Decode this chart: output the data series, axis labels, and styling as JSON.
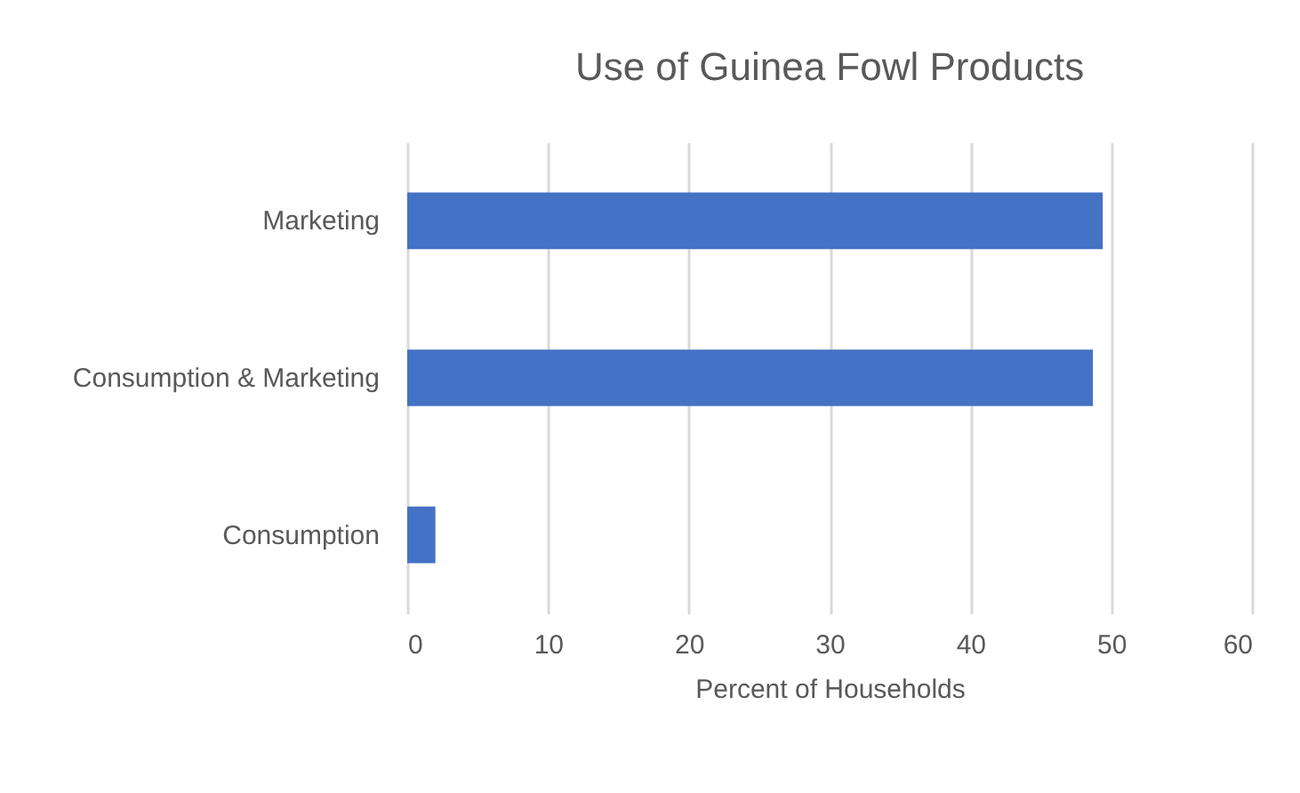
{
  "chart_data": {
    "type": "bar",
    "orientation": "horizontal",
    "title": "Use of Guinea Fowl Products",
    "xlabel": "Percent of Households",
    "categories": [
      "Marketing",
      "Consumption & Marketing",
      "Consumption"
    ],
    "values": [
      49.4,
      48.7,
      2.0
    ],
    "color": "#4472c4",
    "xlim": [
      0,
      60
    ],
    "xticks": [
      0,
      10,
      20,
      30,
      40,
      50,
      60
    ],
    "grid": "x"
  }
}
